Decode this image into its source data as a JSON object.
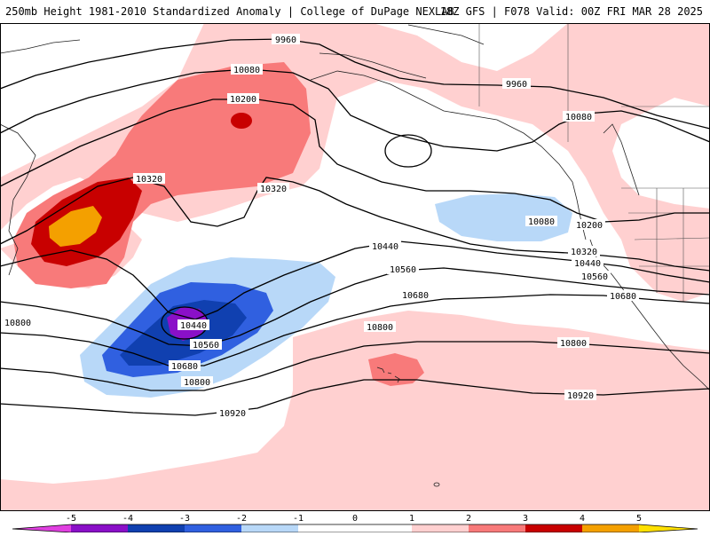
{
  "header": {
    "title_left": "250mb Height 1981-2010 Standardized Anomaly | College of DuPage NEXLAB",
    "title_right": "18Z GFS | F078 Valid: 00Z FRI MAR 28 2025"
  },
  "colors": {
    "m5": "#e040e0",
    "m4": "#8a10c8",
    "m3": "#1040b0",
    "m2": "#3060e0",
    "m1": "#b8d8f8",
    "zero": "#ffffff",
    "p1": "#ffd0d0",
    "p2": "#f87a7a",
    "p3": "#c80000",
    "p4": "#f4a000",
    "p5": "#ffe000"
  },
  "contour_labels": [
    "9960",
    "9960",
    "10080",
    "10080",
    "10080",
    "10200",
    "10200",
    "10320",
    "10320",
    "10320",
    "10440",
    "10440",
    "10440",
    "10560",
    "10560",
    "10560",
    "10680",
    "10680",
    "10680",
    "10800",
    "10800",
    "10800",
    "10800",
    "10920",
    "10920"
  ],
  "colorbar": {
    "ticks": [
      "-5",
      "-4",
      "-3",
      "-2",
      "-1",
      "0",
      "1",
      "2",
      "3",
      "4",
      "5"
    ]
  }
}
